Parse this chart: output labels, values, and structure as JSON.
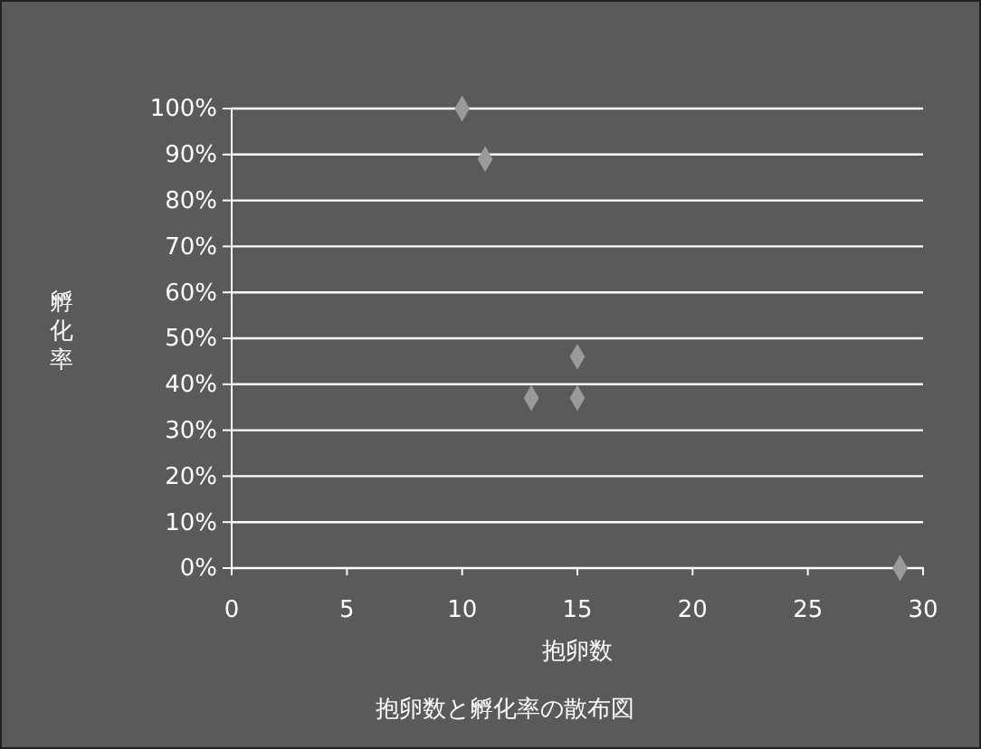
{
  "chart_data": {
    "type": "scatter",
    "title": "抱卵数と孵化率の散布図",
    "xlabel": "抱卵数",
    "ylabel": "孵化率",
    "x": [
      10,
      11,
      13,
      15,
      15,
      29
    ],
    "values": [
      100,
      89,
      37,
      46,
      37,
      0
    ],
    "color": "#9a9a9a",
    "marker": "diamond",
    "grid": "y",
    "xlim": [
      0,
      30
    ],
    "xticks": [
      0,
      5,
      10,
      15,
      20,
      25,
      30
    ],
    "ylim": [
      0,
      100
    ],
    "yticks": [
      {
        "value": 0,
        "label": "0%"
      },
      {
        "value": 10,
        "label": "10%"
      },
      {
        "value": 20,
        "label": "20%"
      },
      {
        "value": 30,
        "label": "30%"
      },
      {
        "value": 40,
        "label": "40%"
      },
      {
        "value": 50,
        "label": "50%"
      },
      {
        "value": 60,
        "label": "60%"
      },
      {
        "value": 70,
        "label": "70%"
      },
      {
        "value": 80,
        "label": "80%"
      },
      {
        "value": 90,
        "label": "90%"
      },
      {
        "value": 100,
        "label": "100%"
      }
    ]
  }
}
